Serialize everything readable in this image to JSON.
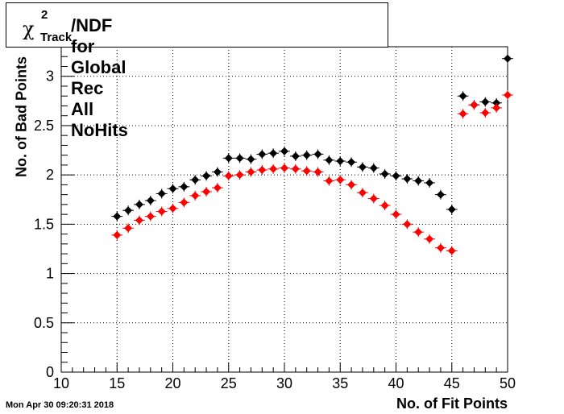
{
  "title": {
    "symbol": "χ",
    "superscript": "2",
    "subscript": "Track",
    "text": "/NDF for Global Rec All NoHits"
  },
  "timestamp": "Mon Apr 30 09:20:31 2018",
  "chart_data": {
    "type": "scatter",
    "title": "χ²_Track/NDF for Global Rec All NoHits",
    "xlabel": "No. of Fit Points",
    "ylabel": "No. of Bad Points",
    "xlim": [
      10,
      50
    ],
    "ylim": [
      0,
      3.3
    ],
    "x_ticks": [
      "10",
      "15",
      "20",
      "25",
      "30",
      "35",
      "40",
      "45",
      "50"
    ],
    "y_ticks": [
      "0",
      "0.5",
      "1",
      "1.5",
      "2",
      "2.5",
      "3"
    ],
    "grid": true,
    "series": [
      {
        "color": "#000000",
        "x": [
          15,
          16,
          17,
          18,
          19,
          20,
          21,
          22,
          23,
          24,
          25,
          26,
          27,
          28,
          29,
          30,
          31,
          32,
          33,
          34,
          35,
          36,
          37,
          38,
          39,
          40,
          41,
          42,
          43,
          44,
          45,
          46,
          47,
          48,
          49,
          50
        ],
        "y": [
          1.58,
          1.64,
          1.7,
          1.74,
          1.81,
          1.86,
          1.88,
          1.95,
          1.99,
          2.03,
          2.17,
          2.17,
          2.16,
          2.21,
          2.22,
          2.24,
          2.19,
          2.2,
          2.21,
          2.15,
          2.14,
          2.13,
          2.08,
          2.07,
          2.01,
          1.99,
          1.96,
          1.94,
          1.92,
          1.8,
          1.65,
          2.8,
          2.71,
          2.74,
          2.73,
          3.18
        ]
      },
      {
        "color": "#ff0000",
        "x": [
          15,
          16,
          17,
          18,
          19,
          20,
          21,
          22,
          23,
          24,
          25,
          26,
          27,
          28,
          29,
          30,
          31,
          32,
          33,
          34,
          35,
          36,
          37,
          38,
          39,
          40,
          41,
          42,
          43,
          44,
          45,
          46,
          47,
          48,
          49,
          50
        ],
        "y": [
          1.39,
          1.46,
          1.54,
          1.58,
          1.63,
          1.66,
          1.72,
          1.79,
          1.83,
          1.87,
          1.99,
          2.0,
          2.03,
          2.05,
          2.06,
          2.07,
          2.06,
          2.04,
          2.03,
          1.94,
          1.95,
          1.9,
          1.82,
          1.76,
          1.69,
          1.6,
          1.5,
          1.42,
          1.35,
          1.26,
          1.23,
          2.62,
          2.71,
          2.63,
          2.68,
          2.81
        ]
      }
    ]
  }
}
